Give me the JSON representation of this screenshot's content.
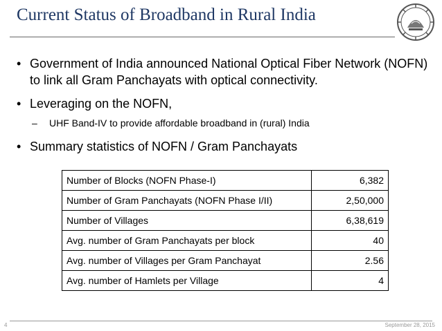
{
  "slide": {
    "title": "Current Status of Broadband in Rural India",
    "page_number": "4",
    "date": "September 28, 2015"
  },
  "bullets": [
    "Government of India  announced National Optical Fiber Network (NOFN) to link all Gram Panchayats with optical connectivity.",
    "Leveraging on the NOFN,",
    "Summary statistics of NOFN / Gram Panchayats"
  ],
  "sub_bullets": [
    "UHF Band-IV to provide affordable broadband in (rural) India"
  ],
  "markers": {
    "bullet": "•",
    "dash": "–"
  },
  "table": {
    "rows": [
      {
        "label": "Number of Blocks (NOFN Phase-I)",
        "value": "6,382"
      },
      {
        "label": "Number of Gram Panchayats (NOFN Phase I/II)",
        "value": "2,50,000"
      },
      {
        "label": "Number of Villages",
        "value": "6,38,619"
      },
      {
        "label": "Avg. number of Gram Panchayats per block",
        "value": "40"
      },
      {
        "label": "Avg. number of Villages per Gram Panchayat",
        "value": "2.56"
      },
      {
        "label": "Avg. number of Hamlets per Village",
        "value": "4"
      }
    ]
  },
  "colors": {
    "title": "#1f3864",
    "logo": "#555555",
    "footer": "#999999"
  },
  "icons": {
    "logo": "institute-logo-icon"
  }
}
